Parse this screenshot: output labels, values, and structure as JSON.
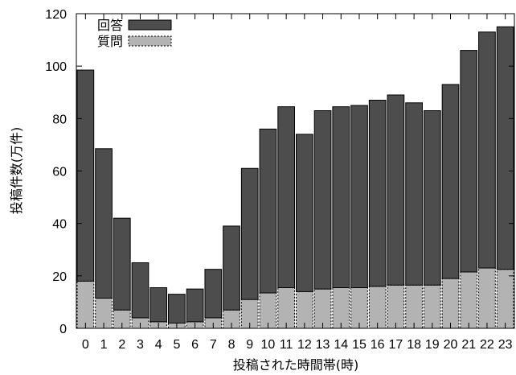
{
  "chart_data": {
    "type": "bar",
    "stacked": true,
    "title": "",
    "xlabel": "投稿された時間帯(時)",
    "ylabel": "投稿件数(万件)",
    "ylim": [
      0,
      120
    ],
    "yticks": [
      0,
      20,
      40,
      60,
      80,
      100,
      120
    ],
    "grid": false,
    "legend_position": "top-left",
    "categories": [
      "0",
      "1",
      "2",
      "3",
      "4",
      "5",
      "6",
      "7",
      "8",
      "9",
      "10",
      "11",
      "12",
      "13",
      "14",
      "15",
      "16",
      "17",
      "18",
      "19",
      "20",
      "21",
      "22",
      "23"
    ],
    "series": [
      {
        "name": "質問",
        "color": "#b3b3b3",
        "values": [
          18,
          11.5,
          7,
          4,
          2.5,
          2,
          2.5,
          4,
          7,
          11,
          13.5,
          15.5,
          14,
          15,
          15.5,
          15.5,
          16,
          16.5,
          16.5,
          16.5,
          19,
          21.5,
          23,
          22.5
        ]
      },
      {
        "name": "回答",
        "color": "#4d4d4d",
        "values": [
          80.5,
          57,
          35,
          21,
          13,
          11,
          12.5,
          18.5,
          32,
          50,
          62.5,
          69,
          60,
          68,
          69,
          69.5,
          71,
          72.5,
          69.5,
          66.5,
          74,
          84.5,
          90,
          92.5
        ]
      }
    ]
  }
}
